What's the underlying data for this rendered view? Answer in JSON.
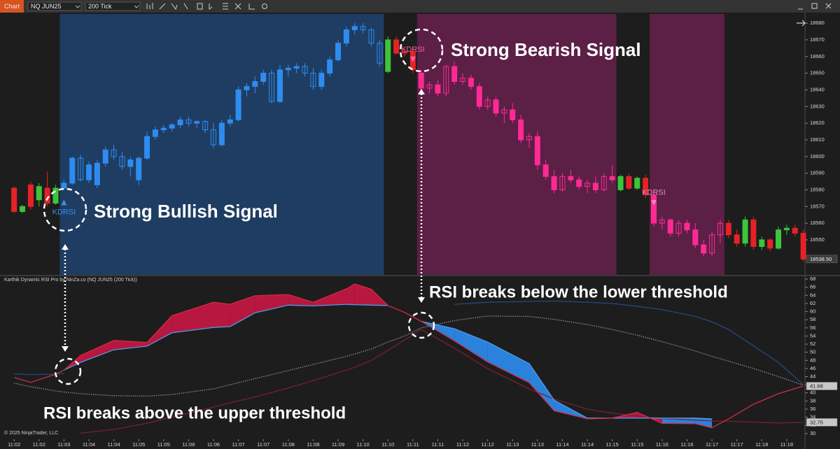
{
  "toolbar": {
    "app": "Chart",
    "instrument": "NQ JUN25",
    "interval": "200 Tick"
  },
  "chart_data": [
    {
      "type": "candlestick",
      "ohlc": [
        [
          18581,
          18582,
          18566,
          18567
        ],
        [
          18567,
          18571,
          18566,
          18570
        ],
        [
          18583,
          18585,
          18568,
          18570
        ],
        [
          18574,
          18584,
          18570,
          18582
        ],
        [
          18581,
          18591,
          18570,
          18572
        ],
        [
          18572,
          18583,
          18571,
          18581
        ],
        [
          18581,
          18586,
          18580,
          18584
        ],
        [
          18584,
          18600,
          18583,
          18599
        ],
        [
          18599,
          18601,
          18585,
          18586
        ],
        [
          18586,
          18597,
          18584,
          18595
        ],
        [
          18583,
          18598,
          18581,
          18596
        ],
        [
          18596,
          18606,
          18594,
          18604
        ],
        [
          18604,
          18607,
          18598,
          18600
        ],
        [
          18600,
          18603,
          18592,
          18594
        ],
        [
          18594,
          18600,
          18588,
          18598
        ],
        [
          18586,
          18600,
          18583,
          18599
        ],
        [
          18599,
          18615,
          18598,
          18612
        ],
        [
          18612,
          18618,
          18610,
          18616
        ],
        [
          18616,
          18619,
          18614,
          18617
        ],
        [
          18617,
          18620,
          18615,
          18619
        ],
        [
          18619,
          18624,
          18617,
          18622
        ],
        [
          18622,
          18624,
          18618,
          18620
        ],
        [
          18620,
          18622,
          18617,
          18621
        ],
        [
          18621,
          18622,
          18614,
          18616
        ],
        [
          18616,
          18620,
          18605,
          18607
        ],
        [
          18607,
          18622,
          18606,
          18620
        ],
        [
          18620,
          18625,
          18618,
          18622
        ],
        [
          18622,
          18642,
          18621,
          18640
        ],
        [
          18640,
          18644,
          18636,
          18642
        ],
        [
          18642,
          18648,
          18638,
          18645
        ],
        [
          18645,
          18652,
          18643,
          18650
        ],
        [
          18650,
          18652,
          18632,
          18633
        ],
        [
          18633,
          18655,
          18632,
          18652
        ],
        [
          18652,
          18655,
          18648,
          18653
        ],
        [
          18653,
          18656,
          18650,
          18654
        ],
        [
          18654,
          18656,
          18648,
          18650
        ],
        [
          18650,
          18653,
          18640,
          18642
        ],
        [
          18642,
          18652,
          18640,
          18650
        ],
        [
          18650,
          18660,
          18648,
          18658
        ],
        [
          18658,
          18670,
          18657,
          18668
        ],
        [
          18668,
          18678,
          18666,
          18676
        ],
        [
          18676,
          18680,
          18673,
          18678
        ],
        [
          18678,
          18680,
          18674,
          18676
        ],
        [
          18676,
          18677,
          18666,
          18668
        ],
        [
          18668,
          18670,
          18654,
          18656
        ],
        [
          18651,
          18672,
          18650,
          18670
        ],
        [
          18670,
          18672,
          18661,
          18662
        ],
        [
          18663,
          18665,
          18660,
          18662
        ],
        [
          18663,
          18665,
          18650,
          18652
        ],
        [
          18650,
          18652,
          18638,
          18641
        ],
        [
          18641,
          18645,
          18638,
          18643
        ],
        [
          18643,
          18646,
          18636,
          18638
        ],
        [
          18638,
          18655,
          18636,
          18654
        ],
        [
          18654,
          18657,
          18643,
          18645
        ],
        [
          18645,
          18650,
          18643,
          18647
        ],
        [
          18647,
          18649,
          18640,
          18642
        ],
        [
          18642,
          18644,
          18628,
          18630
        ],
        [
          18630,
          18636,
          18628,
          18634
        ],
        [
          18634,
          18636,
          18624,
          18626
        ],
        [
          18626,
          18630,
          18620,
          18628
        ],
        [
          18628,
          18632,
          18620,
          18622
        ],
        [
          18622,
          18625,
          18608,
          18610
        ],
        [
          18610,
          18614,
          18605,
          18612
        ],
        [
          18612,
          18615,
          18592,
          18595
        ],
        [
          18595,
          18598,
          18586,
          18588
        ],
        [
          18588,
          18592,
          18578,
          18580
        ],
        [
          18580,
          18590,
          18579,
          18588
        ],
        [
          18588,
          18592,
          18584,
          18586
        ],
        [
          18586,
          18588,
          18580,
          18582
        ],
        [
          18582,
          18586,
          18578,
          18584
        ],
        [
          18584,
          18588,
          18578,
          18580
        ],
        [
          18580,
          18590,
          18579,
          18588
        ],
        [
          18588,
          18595,
          18584,
          18586
        ],
        [
          18580,
          18589,
          18579,
          18588
        ],
        [
          18588,
          18590,
          18580,
          18581
        ],
        [
          18581,
          18588,
          18580,
          18587
        ],
        [
          18587,
          18589,
          18575,
          18577
        ],
        [
          18577,
          18579,
          18558,
          18560
        ],
        [
          18560,
          18564,
          18556,
          18562
        ],
        [
          18562,
          18563,
          18552,
          18554
        ],
        [
          18554,
          18562,
          18552,
          18560
        ],
        [
          18560,
          18562,
          18554,
          18556
        ],
        [
          18556,
          18560,
          18545,
          18547
        ],
        [
          18547,
          18550,
          18540,
          18542
        ],
        [
          18542,
          18555,
          18540,
          18553
        ],
        [
          18553,
          18562,
          18548,
          18560
        ],
        [
          18560,
          18562,
          18551,
          18553
        ],
        [
          18553,
          18556,
          18546,
          18548
        ],
        [
          18548,
          18564,
          18546,
          18562
        ],
        [
          18562,
          18564,
          18544,
          18546
        ],
        [
          18546,
          18552,
          18544,
          18550
        ],
        [
          18550,
          18551,
          18543,
          18545
        ],
        [
          18545,
          18558,
          18544,
          18556
        ],
        [
          18556,
          18559,
          18553,
          18557
        ],
        [
          18557,
          18559,
          18552,
          18554
        ],
        [
          18554,
          18556,
          18537,
          18538.5
        ]
      ],
      "xlim": [
        -1.7,
        95.2
      ],
      "ylim": [
        18529,
        18685.5
      ],
      "yticks": [
        18550,
        18560,
        18570,
        18580,
        18590,
        18600,
        18610,
        18620,
        18630,
        18640,
        18650,
        18660,
        18670,
        18680
      ],
      "up_color": "#3cc43c",
      "down_color": "#e62227",
      "regions": [
        {
          "start": 6,
          "end": 44,
          "color": "#1f3d62",
          "candle_color": "#2e8cf0",
          "direction": "up"
        },
        {
          "start": 49,
          "end": 72,
          "color": "#5c1f46",
          "candle_color": "#ff2a93",
          "direction": "down"
        },
        {
          "start": 77,
          "end": 85,
          "color": "#5c1f46",
          "candle_color": "#ff2a93",
          "direction": "down"
        }
      ],
      "signals": [
        {
          "index": 6,
          "label": "KDRSI",
          "direction": "up",
          "color": "#3b8fe6"
        },
        {
          "index": 48,
          "label": "KDRSI",
          "direction": "down",
          "color": "#ff5fae"
        },
        {
          "index": 77,
          "label": "KDRSI",
          "direction": "down",
          "color": "#e88bbb"
        }
      ],
      "last_price": {
        "value": 18538.5,
        "label": "18538.50"
      }
    },
    {
      "type": "line",
      "title": "Karthik Dynamic RSI Pro by NinZa.co (NQ JUN25 (200 Tick))",
      "x": [
        0,
        2,
        5,
        6,
        8,
        12,
        16,
        19,
        24,
        26,
        29,
        33,
        36,
        40,
        41,
        43,
        45,
        47,
        49,
        53,
        57,
        62,
        65,
        69,
        72,
        75,
        78,
        82,
        84,
        86,
        89,
        92,
        95
      ],
      "xlim": [
        -1.7,
        95.2
      ],
      "ylim": [
        28.6,
        68.7
      ],
      "yticks": [
        30,
        32,
        34,
        36,
        38,
        40,
        42,
        44,
        46,
        48,
        50,
        52,
        54,
        56,
        58,
        60,
        62,
        64,
        66,
        68
      ],
      "xticks": [
        {
          "value": 0,
          "label": "11:02"
        },
        {
          "value": 3,
          "label": "11:02"
        },
        {
          "value": 6,
          "label": "11:03"
        },
        {
          "value": 9,
          "label": "11:04"
        },
        {
          "value": 12,
          "label": "11:04"
        },
        {
          "value": 15,
          "label": "11:05"
        },
        {
          "value": 18,
          "label": "11:05"
        },
        {
          "value": 21,
          "label": "11:06"
        },
        {
          "value": 24,
          "label": "11:06"
        },
        {
          "value": 27,
          "label": "11:07"
        },
        {
          "value": 30,
          "label": "11:07"
        },
        {
          "value": 33,
          "label": "11:08"
        },
        {
          "value": 36,
          "label": "11:08"
        },
        {
          "value": 39,
          "label": "11:09"
        },
        {
          "value": 42,
          "label": "11:10"
        },
        {
          "value": 45,
          "label": "11:10"
        },
        {
          "value": 48,
          "label": "11:11"
        },
        {
          "value": 51,
          "label": "11:11"
        },
        {
          "value": 54,
          "label": "11:12"
        },
        {
          "value": 57,
          "label": "11:12"
        },
        {
          "value": 60,
          "label": "11:13"
        },
        {
          "value": 63,
          "label": "11:13"
        },
        {
          "value": 66,
          "label": "11:14"
        },
        {
          "value": 69,
          "label": "11:14"
        },
        {
          "value": 72,
          "label": "11:15"
        },
        {
          "value": 75,
          "label": "11:15"
        },
        {
          "value": 78,
          "label": "11:16"
        },
        {
          "value": 81,
          "label": "11:16"
        },
        {
          "value": 84,
          "label": "11:17"
        },
        {
          "value": 87,
          "label": "11:17"
        },
        {
          "value": 90,
          "label": "11:18"
        },
        {
          "value": 93,
          "label": "11:18"
        }
      ],
      "fill_above": "#b8173f",
      "fill_below": "#2a82dc",
      "series": [
        {
          "color": "#d42a45",
          "values": [
            43.8,
            42.6,
            44.6,
            45.6,
            49.2,
            52.9,
            52.4,
            59,
            62.3,
            61.8,
            63.9,
            64.2,
            62.3,
            65.6,
            66.8,
            65.5,
            61.5,
            59.8,
            57.6,
            52.8,
            47.6,
            42.5,
            35.6,
            33.6,
            33.8,
            35.2,
            32.5,
            32.4,
            31.4,
            33.6,
            37.2,
            39.8,
            41.68
          ]
        },
        {
          "color": "#4a9be8",
          "values": [
            null,
            null,
            null,
            45.6,
            47.5,
            50.6,
            51.5,
            54.8,
            56.1,
            56.3,
            59.7,
            61.6,
            61.4,
            61.8,
            61.7,
            61.6,
            61.5,
            null,
            57.6,
            55.8,
            52.5,
            47.2,
            38.2,
            33.8,
            33.8,
            33.8,
            33.8,
            33.8,
            33.6,
            null,
            null,
            null,
            null
          ]
        },
        {
          "color": "#8c8c8c",
          "dash": true,
          "values": [
            42.4,
            41.5,
            40.5,
            40.2,
            39.8,
            39.3,
            39.2,
            39.6,
            41,
            42,
            43.5,
            45.5,
            47,
            49,
            49.6,
            50.8,
            52.5,
            54,
            56,
            57.8,
            58.9,
            58.8,
            58.1,
            56.8,
            55.6,
            54.2,
            52.6,
            50.3,
            49,
            47.8,
            46,
            44,
            41.9
          ]
        },
        {
          "color": "#7a1f30",
          "values": [
            null,
            null,
            null,
            null,
            30.1,
            31,
            32.5,
            34,
            36.5,
            37.6,
            39,
            41.2,
            43,
            45.6,
            46.3,
            48,
            50.5,
            53,
            55.6,
            51,
            46,
            41,
            38.5,
            36,
            35,
            34.3,
            33.7,
            33.3,
            33.1,
            33,
            32.8,
            32.6,
            32.75
          ]
        },
        {
          "color": "#24497e",
          "values": [
            44.7,
            44.5,
            44.6,
            44.8,
            null,
            null,
            null,
            null,
            null,
            null,
            null,
            null,
            null,
            null,
            null,
            null,
            null,
            null,
            null,
            61.8,
            62.3,
            62.5,
            62.6,
            62.3,
            62,
            61.3,
            60.5,
            58.8,
            57.5,
            55.6,
            51.6,
            47.5,
            42
          ]
        }
      ],
      "axis_labels": [
        41.68,
        32.75
      ]
    }
  ],
  "annotations": [
    {
      "text": "Strong Bearish Signal"
    },
    {
      "text": "Strong Bullish Signal"
    },
    {
      "text": "RSI breaks below the lower threshold"
    },
    {
      "text": "RSI breaks above the upper threshold"
    }
  ],
  "copyright": "© 2025 NinjaTrader, LLC"
}
